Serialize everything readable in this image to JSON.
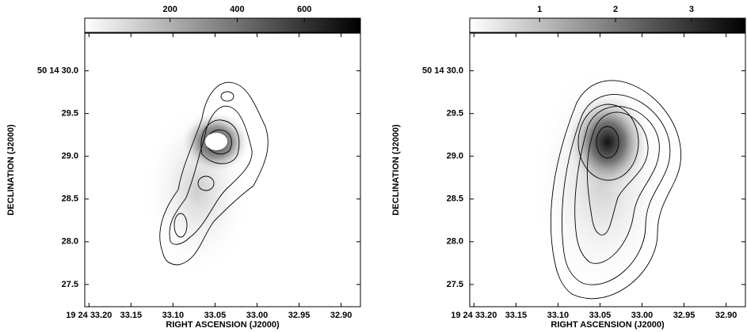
{
  "chart_data": [
    {
      "type": "image",
      "xlabel": "RIGHT ASCENSION (J2000)",
      "ylabel": "DECLINATION (J2000)",
      "xlim": [
        33.205,
        32.877
      ],
      "xticks": [
        {
          "value": 33.2,
          "label": "19 24 33.20"
        },
        33.15,
        {
          "value": 33.1,
          "label": "33.10"
        },
        33.05,
        {
          "value": 33.0,
          "label": "33.00"
        },
        32.95,
        {
          "value": 32.9,
          "label": "32.90"
        }
      ],
      "ylim": [
        27.24,
        30.44
      ],
      "yticks": [
        {
          "value": 30.0,
          "label": "50 14 30.0"
        },
        29.5,
        {
          "value": 29.0,
          "label": "29.0"
        },
        28.5,
        {
          "value": 28.0,
          "label": "28.0"
        },
        27.5
      ],
      "colorbar": {
        "lim": [
          -54,
          767
        ],
        "ticks": [
          200,
          400,
          600
        ]
      }
    },
    {
      "type": "image",
      "xlabel": "RIGHT ASCENSION (J2000)",
      "ylabel": "DECLINATION (J2000)",
      "xlim": [
        33.205,
        32.877
      ],
      "xticks": [
        {
          "value": 33.2,
          "label": "19 24 33.20"
        },
        33.15,
        {
          "value": 33.1,
          "label": "33.10"
        },
        33.05,
        {
          "value": 33.0,
          "label": "33.00"
        },
        32.95,
        {
          "value": 32.9,
          "label": "32.90"
        }
      ],
      "ylim": [
        27.24,
        30.44
      ],
      "yticks": [
        {
          "value": 30.0,
          "label": "50 14 30.0"
        },
        29.5,
        {
          "value": 29.0,
          "label": "29.0"
        },
        28.5,
        {
          "value": 28.0,
          "label": "28.0"
        },
        27.5
      ],
      "colorbar": {
        "lim": [
          0.08,
          3.71
        ],
        "ticks": [
          1,
          2,
          3
        ]
      }
    }
  ]
}
